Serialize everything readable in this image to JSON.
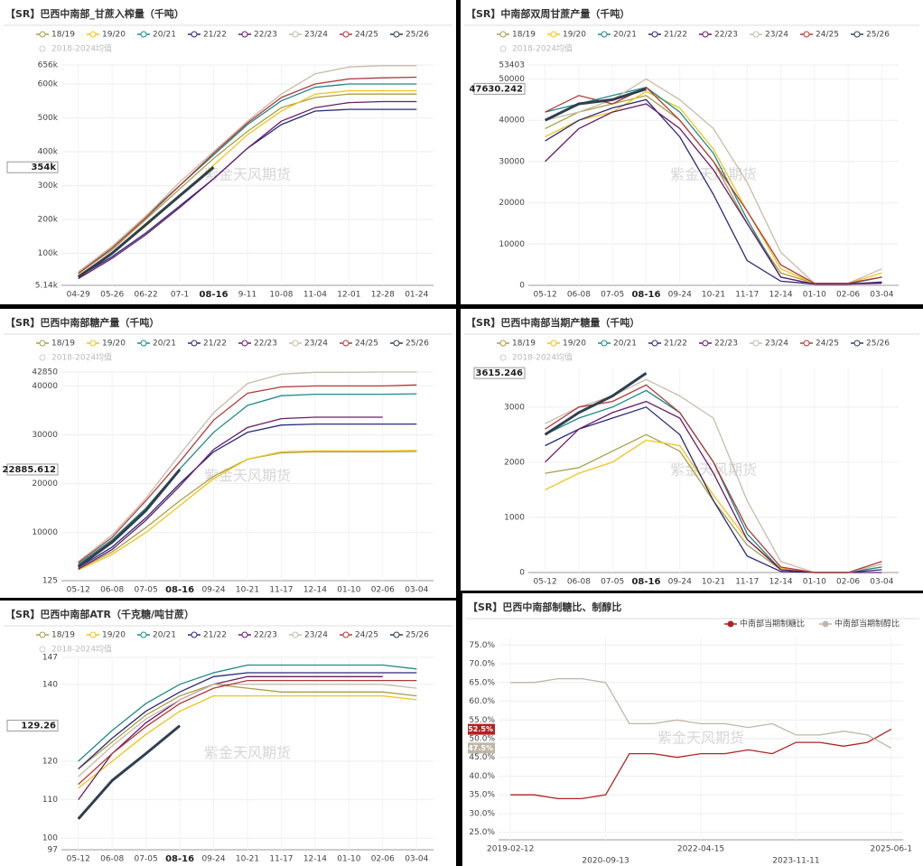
{
  "chart_data": [
    {
      "type": "line",
      "title": "【SR】巴西中南部_甘蔗入榨量（千吨）",
      "watermark": "紫金天风期货",
      "grid": true,
      "categories": [
        "04-29",
        "05-26",
        "06-22",
        "07-1",
        "08-16",
        "9-11",
        "10-08",
        "11-04",
        "12-01",
        "12-28",
        "01-24"
      ],
      "ylim": [
        5140,
        656000
      ],
      "yticks": [
        {
          "value": 5140,
          "label": "5.14k"
        },
        {
          "value": 100000,
          "label": "100k"
        },
        {
          "value": 200000,
          "label": "200k"
        },
        {
          "value": 300000,
          "label": "300k"
        },
        {
          "value": 400000,
          "label": "400k"
        },
        {
          "value": 500000,
          "label": "500k"
        },
        {
          "value": 600000,
          "label": "600k"
        },
        {
          "value": 656000,
          "label": "656k"
        }
      ],
      "hidden_series": [
        {
          "name": "2018-2024均值"
        }
      ],
      "series": [
        {
          "name": "18/19",
          "color": "#a89f4a",
          "values": [
            40000,
            110000,
            200000,
            290000,
            380000,
            460000,
            530000,
            560000,
            570000,
            570000,
            570000
          ]
        },
        {
          "name": "19/20",
          "color": "#f0c419",
          "values": [
            35000,
            100000,
            180000,
            270000,
            360000,
            450000,
            520000,
            570000,
            580000,
            580000,
            580000
          ]
        },
        {
          "name": "20/21",
          "color": "#1f8a8a",
          "values": [
            45000,
            120000,
            210000,
            300000,
            390000,
            480000,
            550000,
            590000,
            600000,
            600000,
            600000
          ]
        },
        {
          "name": "21/22",
          "color": "#2a2a7a",
          "values": [
            30000,
            90000,
            160000,
            240000,
            320000,
            410000,
            480000,
            520000,
            525000,
            525000,
            525000
          ]
        },
        {
          "name": "22/23",
          "color": "#6a1b6a",
          "values": [
            25000,
            85000,
            155000,
            235000,
            320000,
            410000,
            490000,
            530000,
            545000,
            548000,
            548000
          ]
        },
        {
          "name": "23/24",
          "color": "#c8bca8",
          "values": [
            45000,
            120000,
            210000,
            310000,
            400000,
            490000,
            570000,
            630000,
            650000,
            654000,
            654000
          ]
        },
        {
          "name": "24/25",
          "color": "#b23a3a",
          "values": [
            40000,
            115000,
            205000,
            300000,
            395000,
            485000,
            560000,
            600000,
            615000,
            618000,
            620000
          ]
        },
        {
          "name": "25/26",
          "color": "#2f3f4f",
          "emphasis": true,
          "values": [
            30000,
            100000,
            185000,
            270000,
            354000,
            null,
            null,
            null,
            null,
            null,
            null
          ],
          "value_labels": [
            null,
            null,
            null,
            null,
            "354k",
            null,
            null,
            null,
            null,
            null,
            null
          ]
        }
      ]
    },
    {
      "type": "line",
      "title": "【SR】中南部双周甘蔗产量（千吨）",
      "watermark": "紫金天风期货",
      "grid": true,
      "categories": [
        "05-12",
        "06-08",
        "07-05",
        "08-16",
        "09-24",
        "10-21",
        "11-17",
        "12-14",
        "01-10",
        "02-06",
        "03-04"
      ],
      "ylim": [
        0,
        53403
      ],
      "yticks": [
        0,
        10000,
        20000,
        30000,
        40000,
        50000,
        53403
      ],
      "hidden_series": [
        {
          "name": "2018-2024均值"
        }
      ],
      "series": [
        {
          "name": "18/19",
          "color": "#a89f4a",
          "values": [
            38000,
            42000,
            44000,
            46000,
            40000,
            30000,
            15000,
            3000,
            500,
            500,
            2000
          ]
        },
        {
          "name": "19/20",
          "color": "#f0c419",
          "values": [
            36000,
            40000,
            42000,
            47000,
            43000,
            33000,
            18000,
            4000,
            500,
            500,
            3000
          ]
        },
        {
          "name": "20/21",
          "color": "#1f8a8a",
          "values": [
            42000,
            44000,
            46000,
            48000,
            42000,
            32000,
            16000,
            2000,
            300,
            300,
            2000
          ]
        },
        {
          "name": "21/22",
          "color": "#2a2a7a",
          "values": [
            35000,
            40000,
            43000,
            45000,
            36000,
            22000,
            6000,
            1000,
            300,
            300,
            800
          ]
        },
        {
          "name": "22/23",
          "color": "#6a1b6a",
          "values": [
            30000,
            38000,
            42000,
            44000,
            38000,
            28000,
            15000,
            2000,
            300,
            300,
            500
          ]
        },
        {
          "name": "23/24",
          "color": "#c8bca8",
          "values": [
            40000,
            42000,
            45000,
            50000,
            45000,
            38000,
            25000,
            8000,
            500,
            500,
            4000
          ]
        },
        {
          "name": "24/25",
          "color": "#b23a3a",
          "values": [
            42000,
            46000,
            44000,
            48000,
            40000,
            30000,
            18000,
            5000,
            500,
            500,
            2000
          ]
        },
        {
          "name": "25/26",
          "color": "#2f3f4f",
          "emphasis": true,
          "values": [
            40000,
            44000,
            45000,
            47630.242,
            null,
            null,
            null,
            null,
            null,
            null,
            null
          ]
        }
      ]
    },
    {
      "type": "line",
      "title": "【SR】巴西中南部糖产量（千吨）",
      "watermark": "紫金天风期货",
      "grid": true,
      "categories": [
        "05-12",
        "06-08",
        "07-05",
        "08-16",
        "09-24",
        "10-21",
        "11-17",
        "12-14",
        "01-10",
        "02-06",
        "03-04"
      ],
      "ylim": [
        125,
        42850
      ],
      "yticks": [
        125,
        10000,
        20000,
        30000,
        40000,
        42850
      ],
      "hidden_series": [
        {
          "name": "2018-2024均值"
        }
      ],
      "series": [
        {
          "name": "18/19",
          "color": "#a89f4a",
          "values": [
            2500,
            6000,
            11000,
            16500,
            21500,
            25000,
            26300,
            26500,
            26500,
            26500,
            26600
          ]
        },
        {
          "name": "19/20",
          "color": "#f0c419",
          "values": [
            2300,
            5500,
            10000,
            15500,
            21000,
            25000,
            26500,
            26700,
            26700,
            26700,
            26800
          ]
        },
        {
          "name": "20/21",
          "color": "#1f8a8a",
          "values": [
            3500,
            8500,
            15000,
            23000,
            30500,
            36000,
            38000,
            38300,
            38300,
            38300,
            38400
          ]
        },
        {
          "name": "21/22",
          "color": "#2a2a7a",
          "values": [
            2800,
            7000,
            13000,
            20000,
            26500,
            30500,
            32000,
            32200,
            32200,
            32200,
            32200
          ]
        },
        {
          "name": "22/23",
          "color": "#6a1b6a",
          "values": [
            2500,
            6500,
            12500,
            19500,
            27000,
            31500,
            33300,
            33600,
            33600,
            33600,
            null
          ]
        },
        {
          "name": "23/24",
          "color": "#c8bca8",
          "values": [
            4000,
            9500,
            17000,
            26000,
            34500,
            40500,
            42400,
            42800,
            42800,
            42850,
            42850
          ]
        },
        {
          "name": "24/25",
          "color": "#b23a3a",
          "values": [
            3800,
            9000,
            16500,
            24500,
            33000,
            38500,
            39800,
            40000,
            40000,
            40000,
            40200
          ]
        },
        {
          "name": "25/26",
          "color": "#2f3f4f",
          "emphasis": true,
          "values": [
            3000,
            8000,
            14500,
            22885.612,
            null,
            null,
            null,
            null,
            null,
            null,
            null
          ]
        }
      ]
    },
    {
      "type": "line",
      "title": "【SR】巴西中南部当期产糖量（千吨）",
      "watermark": "紫金天风期货",
      "grid": true,
      "categories": [
        "05-12",
        "06-08",
        "07-05",
        "08-16",
        "09-24",
        "10-21",
        "11-17",
        "12-14",
        "01-10",
        "02-06",
        "03-04"
      ],
      "ylim": [
        0,
        3700
      ],
      "yticks": [
        0,
        1000,
        2000,
        3000
      ],
      "hidden_series": [
        {
          "name": "2018-2024均值"
        }
      ],
      "series": [
        {
          "name": "18/19",
          "color": "#a89f4a",
          "values": [
            1800,
            1900,
            2200,
            2500,
            2200,
            1300,
            500,
            50,
            0,
            0,
            100
          ]
        },
        {
          "name": "19/20",
          "color": "#f0c419",
          "values": [
            1500,
            1800,
            2000,
            2400,
            2300,
            1400,
            600,
            80,
            0,
            0,
            150
          ]
        },
        {
          "name": "20/21",
          "color": "#1f8a8a",
          "values": [
            2500,
            2800,
            3000,
            3300,
            2900,
            2000,
            700,
            50,
            0,
            0,
            100
          ]
        },
        {
          "name": "21/22",
          "color": "#2a2a7a",
          "values": [
            2300,
            2600,
            2800,
            3000,
            2500,
            1300,
            300,
            20,
            0,
            0,
            50
          ]
        },
        {
          "name": "22/23",
          "color": "#6a1b6a",
          "values": [
            2000,
            2600,
            2900,
            3100,
            2800,
            1800,
            600,
            50,
            0,
            0,
            0
          ]
        },
        {
          "name": "23/24",
          "color": "#c8bca8",
          "values": [
            2700,
            3000,
            3200,
            3500,
            3200,
            2800,
            1300,
            200,
            0,
            0,
            150
          ]
        },
        {
          "name": "24/25",
          "color": "#b23a3a",
          "values": [
            2600,
            3000,
            3100,
            3400,
            2900,
            2000,
            800,
            100,
            0,
            0,
            200
          ]
        },
        {
          "name": "25/26",
          "color": "#2f3f4f",
          "emphasis": true,
          "values": [
            2500,
            2900,
            3200,
            3615.246,
            null,
            null,
            null,
            null,
            null,
            null,
            null
          ]
        }
      ]
    },
    {
      "type": "line",
      "title": "【SR】巴西中南部ATR（千克糖/吨甘蔗）",
      "watermark": "紫金天风期货",
      "grid": true,
      "categories": [
        "05-12",
        "06-08",
        "07-05",
        "08-16",
        "09-24",
        "10-21",
        "11-17",
        "12-14",
        "01-10",
        "02-06",
        "03-04"
      ],
      "ylim": [
        97,
        147
      ],
      "yticks": [
        97,
        100,
        110,
        120,
        140,
        147
      ],
      "hidden_series": [
        {
          "name": "2018-2024均值"
        }
      ],
      "series": [
        {
          "name": "18/19",
          "color": "#a89f4a",
          "values": [
            118,
            125,
            132,
            137,
            140,
            139,
            138,
            138,
            138,
            138,
            137
          ]
        },
        {
          "name": "19/20",
          "color": "#f0c419",
          "values": [
            113,
            120,
            127,
            133,
            137,
            137,
            137,
            137,
            137,
            137,
            136
          ]
        },
        {
          "name": "20/21",
          "color": "#1f8a8a",
          "values": [
            120,
            128,
            135,
            140,
            143,
            145,
            145,
            145,
            145,
            145,
            144
          ]
        },
        {
          "name": "21/22",
          "color": "#2a2a7a",
          "values": [
            118,
            126,
            133,
            138,
            142,
            143,
            143,
            143,
            143,
            143,
            143
          ]
        },
        {
          "name": "22/23",
          "color": "#6a1b6a",
          "values": [
            110,
            122,
            130,
            136,
            140,
            142,
            142,
            142,
            142,
            142,
            null
          ]
        },
        {
          "name": "23/24",
          "color": "#c8bca8",
          "values": [
            116,
            124,
            131,
            136,
            140,
            140,
            140,
            140,
            140,
            140,
            139
          ]
        },
        {
          "name": "24/25",
          "color": "#b23a3a",
          "values": [
            114,
            122,
            129,
            135,
            139,
            141,
            141,
            141,
            141,
            141,
            141
          ]
        },
        {
          "name": "25/26",
          "color": "#2f3f4f",
          "emphasis": true,
          "values": [
            105,
            115,
            122,
            129.26,
            null,
            null,
            null,
            null,
            null,
            null,
            null
          ]
        }
      ]
    },
    {
      "type": "line",
      "title": "【SR】巴西中南部制糖比、制醇比",
      "watermark": "紫金天风期货",
      "grid": true,
      "categories": [
        "2019-02-12",
        null,
        null,
        null,
        "2020-09-13",
        null,
        null,
        null,
        "2022-04-15",
        null,
        null,
        null,
        "2023-11-11",
        null,
        null,
        null,
        "2025-06-1"
      ],
      "ylim": [
        23,
        77
      ],
      "yticks": [
        {
          "value": 25,
          "label": "25.0%"
        },
        {
          "value": 30,
          "label": "30.0%"
        },
        {
          "value": 35,
          "label": "35.0%"
        },
        {
          "value": 40,
          "label": "40.0%"
        },
        {
          "value": 45,
          "label": "45.0%"
        },
        {
          "value": 50,
          "label": "50.0%"
        },
        {
          "value": 55,
          "label": "55.0%"
        },
        {
          "value": 60,
          "label": "60.0%"
        },
        {
          "value": 65,
          "label": "65.0%"
        },
        {
          "value": 70,
          "label": "70.0%"
        },
        {
          "value": 75,
          "label": "75.0%"
        }
      ],
      "series": [
        {
          "name": "中南部当期制糖比",
          "color": "#b22222",
          "values": [
            35,
            35,
            34,
            34,
            35,
            46,
            46,
            45,
            46,
            46,
            47,
            46,
            49,
            49,
            48,
            49,
            52.5
          ],
          "value_labels": [
            null,
            null,
            null,
            null,
            null,
            null,
            null,
            null,
            null,
            null,
            null,
            null,
            null,
            null,
            null,
            null,
            "52.5%"
          ]
        },
        {
          "name": "中南部当期制醇比",
          "color": "#bfb6a6",
          "values": [
            65,
            65,
            66,
            66,
            65,
            54,
            54,
            55,
            54,
            54,
            53,
            54,
            51,
            51,
            52,
            51,
            47.5
          ],
          "value_labels": [
            null,
            null,
            null,
            null,
            null,
            null,
            null,
            null,
            null,
            null,
            null,
            null,
            null,
            null,
            null,
            null,
            "47.5%"
          ]
        }
      ]
    }
  ]
}
